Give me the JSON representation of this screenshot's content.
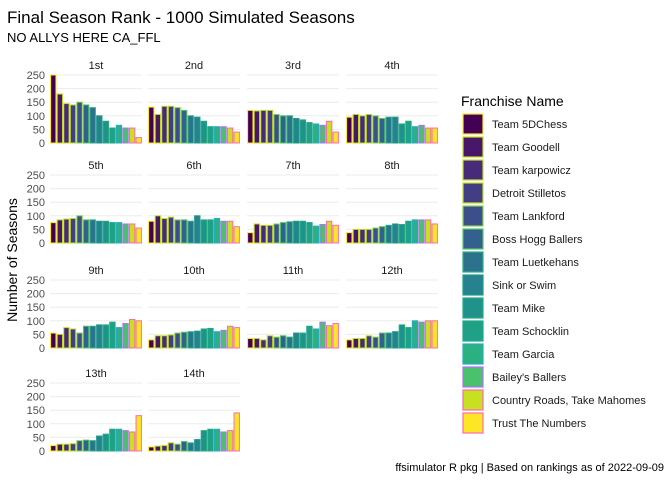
{
  "chart_data": {
    "type": "bar",
    "title": "Final Season Rank - 1000 Simulated Seasons",
    "subtitle": "NO ALLYS HERE CA_FFL",
    "ylabel": "Number of Seasons",
    "caption": "ffsimulator R pkg | Based on rankings as of 2022-09-09",
    "ylim": [
      0,
      250
    ],
    "yticks": [
      "0",
      "50",
      "100",
      "150",
      "200",
      "250"
    ],
    "grid": true,
    "legend": {
      "title": "Franchise Name",
      "position": "right"
    },
    "series": [
      {
        "name": "Team 5DChess",
        "fill": "#440154",
        "outline": "#FDE725"
      },
      {
        "name": "Team Goodell",
        "fill": "#481769",
        "outline": "#C2DF23"
      },
      {
        "name": "Team karpowicz",
        "fill": "#472A7A",
        "outline": "#C2DF23"
      },
      {
        "name": "Detroit Stilletos",
        "fill": "#433D84",
        "outline": "#C2DF23"
      },
      {
        "name": "Team Lankford",
        "fill": "#3C4F8A",
        "outline": "#86D549"
      },
      {
        "name": "Boss Hogg Ballers",
        "fill": "#34608D",
        "outline": "#52C569"
      },
      {
        "name": "Team Luetkehans",
        "fill": "#2C718E",
        "outline": "#2AB07F"
      },
      {
        "name": "Sink or Swim",
        "fill": "#26828E",
        "outline": "#1E9B8A"
      },
      {
        "name": "Team Mike",
        "fill": "#1F928C",
        "outline": "#25AC82"
      },
      {
        "name": "Team Schocklin",
        "fill": "#1FA188",
        "outline": "#21A685"
      },
      {
        "name": "Team Garcia",
        "fill": "#2BB07F",
        "outline": "#25ACC8"
      },
      {
        "name": "Bailey's Ballers",
        "fill": "#4AC16D",
        "outline": "#B66DFF"
      },
      {
        "name": "Country Roads, Take Mahomes",
        "fill": "#C7E020",
        "outline": "#FF69B4"
      },
      {
        "name": "Trust The Numbers",
        "fill": "#FDE725",
        "outline": "#FF69B4"
      }
    ],
    "panels": [
      {
        "label": "1st",
        "values": [
          250,
          180,
          145,
          140,
          150,
          140,
          130,
          100,
          80,
          55,
          65,
          55,
          55,
          20
        ]
      },
      {
        "label": "2nd",
        "values": [
          132,
          105,
          135,
          135,
          130,
          120,
          100,
          95,
          80,
          60,
          60,
          60,
          55,
          40
        ]
      },
      {
        "label": "3rd",
        "values": [
          120,
          118,
          120,
          120,
          105,
          100,
          100,
          90,
          85,
          75,
          70,
          65,
          80,
          40
        ]
      },
      {
        "label": "4th",
        "values": [
          95,
          105,
          100,
          105,
          100,
          90,
          95,
          95,
          70,
          80,
          60,
          65,
          55,
          55
        ]
      },
      {
        "label": "5th",
        "values": [
          75,
          85,
          88,
          90,
          100,
          85,
          85,
          80,
          80,
          75,
          75,
          70,
          70,
          55
        ]
      },
      {
        "label": "6th",
        "values": [
          80,
          100,
          90,
          95,
          85,
          85,
          80,
          100,
          85,
          85,
          90,
          80,
          80,
          60
        ]
      },
      {
        "label": "7th",
        "values": [
          38,
          70,
          65,
          65,
          70,
          75,
          78,
          80,
          80,
          75,
          62,
          68,
          80,
          65
        ]
      },
      {
        "label": "8th",
        "values": [
          38,
          50,
          50,
          50,
          55,
          60,
          65,
          70,
          68,
          80,
          85,
          85,
          85,
          70
        ]
      },
      {
        "label": "9th",
        "values": [
          55,
          50,
          75,
          70,
          55,
          80,
          80,
          85,
          85,
          95,
          75,
          90,
          105,
          100
        ]
      },
      {
        "label": "10th",
        "values": [
          30,
          45,
          45,
          48,
          55,
          58,
          60,
          62,
          70,
          72,
          60,
          65,
          80,
          75
        ]
      },
      {
        "label": "11th",
        "values": [
          35,
          35,
          30,
          45,
          40,
          45,
          40,
          55,
          55,
          80,
          70,
          95,
          82,
          90
        ]
      },
      {
        "label": "12th",
        "values": [
          30,
          35,
          35,
          45,
          40,
          55,
          55,
          60,
          85,
          75,
          100,
          95,
          100,
          100
        ]
      },
      {
        "label": "13th",
        "values": [
          20,
          25,
          25,
          27,
          38,
          40,
          38,
          55,
          62,
          80,
          80,
          75,
          70,
          130
        ]
      },
      {
        "label": "14th",
        "values": [
          15,
          18,
          20,
          30,
          25,
          35,
          30,
          42,
          75,
          80,
          80,
          70,
          75,
          140
        ]
      }
    ]
  }
}
